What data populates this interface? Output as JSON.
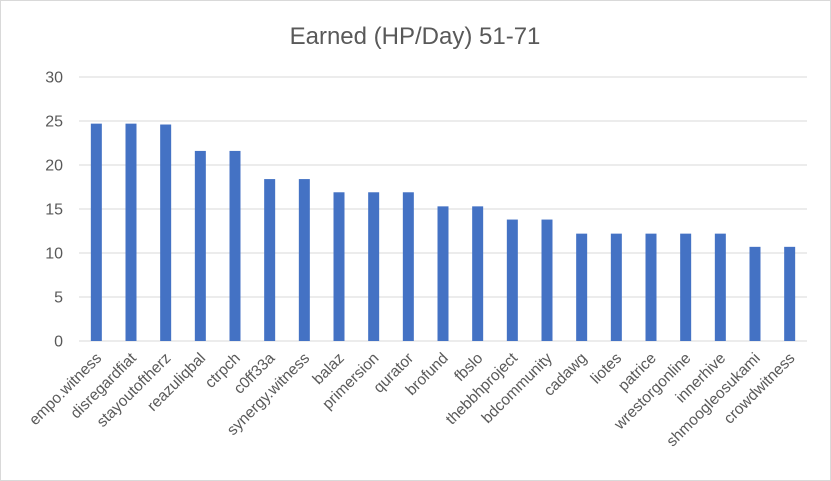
{
  "chart_data": {
    "type": "bar",
    "title": "Earned (HP/Day) 51-71",
    "xlabel": "",
    "ylabel": "",
    "categories": [
      "empo.witness",
      "disregardfiat",
      "stayoutoftherz",
      "reazuliqbal",
      "ctrpch",
      "c0ff33a",
      "synergy.witness",
      "balaz",
      "primersion",
      "qurator",
      "brofund",
      "fbslo",
      "thebbhproject",
      "bdcommunity",
      "cadawg",
      "liotes",
      "patrice",
      "wrestorgonline",
      "innerhive",
      "shmoogleosukami",
      "crowdwitness"
    ],
    "values": [
      24.7,
      24.7,
      24.6,
      21.6,
      21.6,
      18.4,
      18.4,
      16.9,
      16.9,
      16.9,
      15.3,
      15.3,
      13.8,
      13.8,
      12.2,
      12.2,
      12.2,
      12.2,
      12.2,
      10.7,
      10.7
    ],
    "ylim": [
      0,
      30
    ],
    "yticks": [
      0,
      5,
      10,
      15,
      20,
      25,
      30
    ],
    "grid": true,
    "legend": "none",
    "bar_color": "#4472c4",
    "grid_color": "#d9d9d9"
  }
}
